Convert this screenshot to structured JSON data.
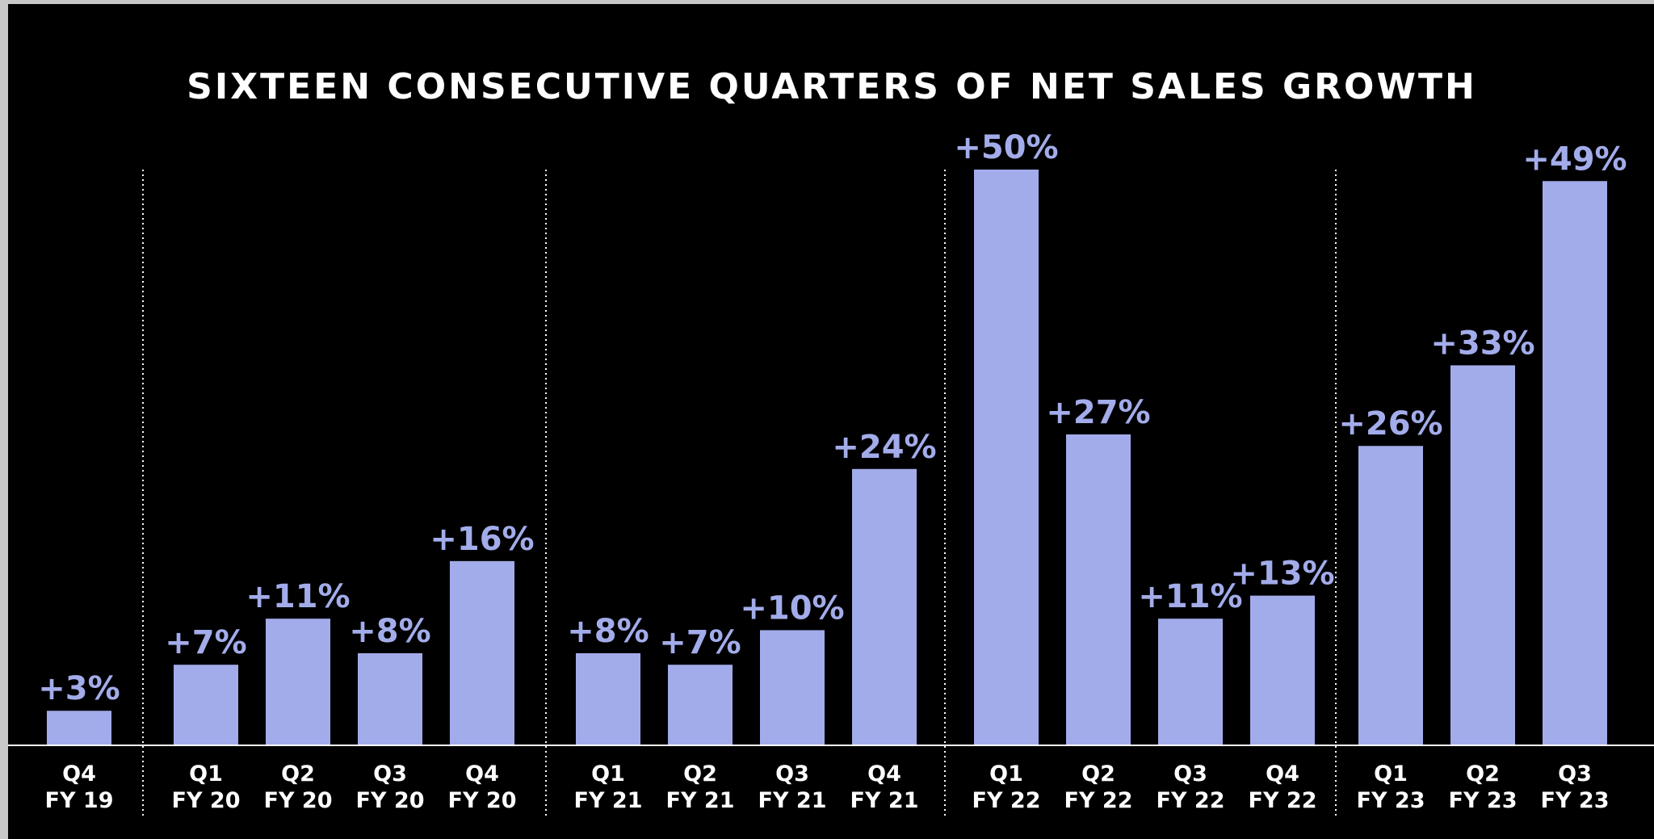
{
  "chart_data": {
    "type": "bar",
    "title": "SIXTEEN CONSECUTIVE QUARTERS OF NET SALES GROWTH",
    "xlabel": "",
    "ylabel": "",
    "ylim": [
      0,
      50
    ],
    "grid": false,
    "legend": "none",
    "bar_color": "#a3acea",
    "background_color": "#000000",
    "categories": [
      {
        "q": "Q4",
        "fy": "FY 19"
      },
      {
        "q": "Q1",
        "fy": "FY 20"
      },
      {
        "q": "Q2",
        "fy": "FY 20"
      },
      {
        "q": "Q3",
        "fy": "FY 20"
      },
      {
        "q": "Q4",
        "fy": "FY 20"
      },
      {
        "q": "Q1",
        "fy": "FY 21"
      },
      {
        "q": "Q2",
        "fy": "FY 21"
      },
      {
        "q": "Q3",
        "fy": "FY 21"
      },
      {
        "q": "Q4",
        "fy": "FY 21"
      },
      {
        "q": "Q1",
        "fy": "FY 22"
      },
      {
        "q": "Q2",
        "fy": "FY 22"
      },
      {
        "q": "Q3",
        "fy": "FY 22"
      },
      {
        "q": "Q4",
        "fy": "FY 22"
      },
      {
        "q": "Q1",
        "fy": "FY 23"
      },
      {
        "q": "Q2",
        "fy": "FY 23"
      },
      {
        "q": "Q3",
        "fy": "FY 23"
      }
    ],
    "values": [
      3,
      7,
      11,
      8,
      16,
      8,
      7,
      10,
      24,
      50,
      27,
      11,
      13,
      26,
      33,
      49
    ],
    "labels": [
      "+3%",
      "+7%",
      "+11%",
      "+8%",
      "+16%",
      "+8%",
      "+7%",
      "+10%",
      "+24%",
      "+50%",
      "+27%",
      "+11%",
      "+13%",
      "+26%",
      "+33%",
      "+49%"
    ],
    "group_dividers_after": [
      0,
      4,
      8,
      12
    ]
  }
}
